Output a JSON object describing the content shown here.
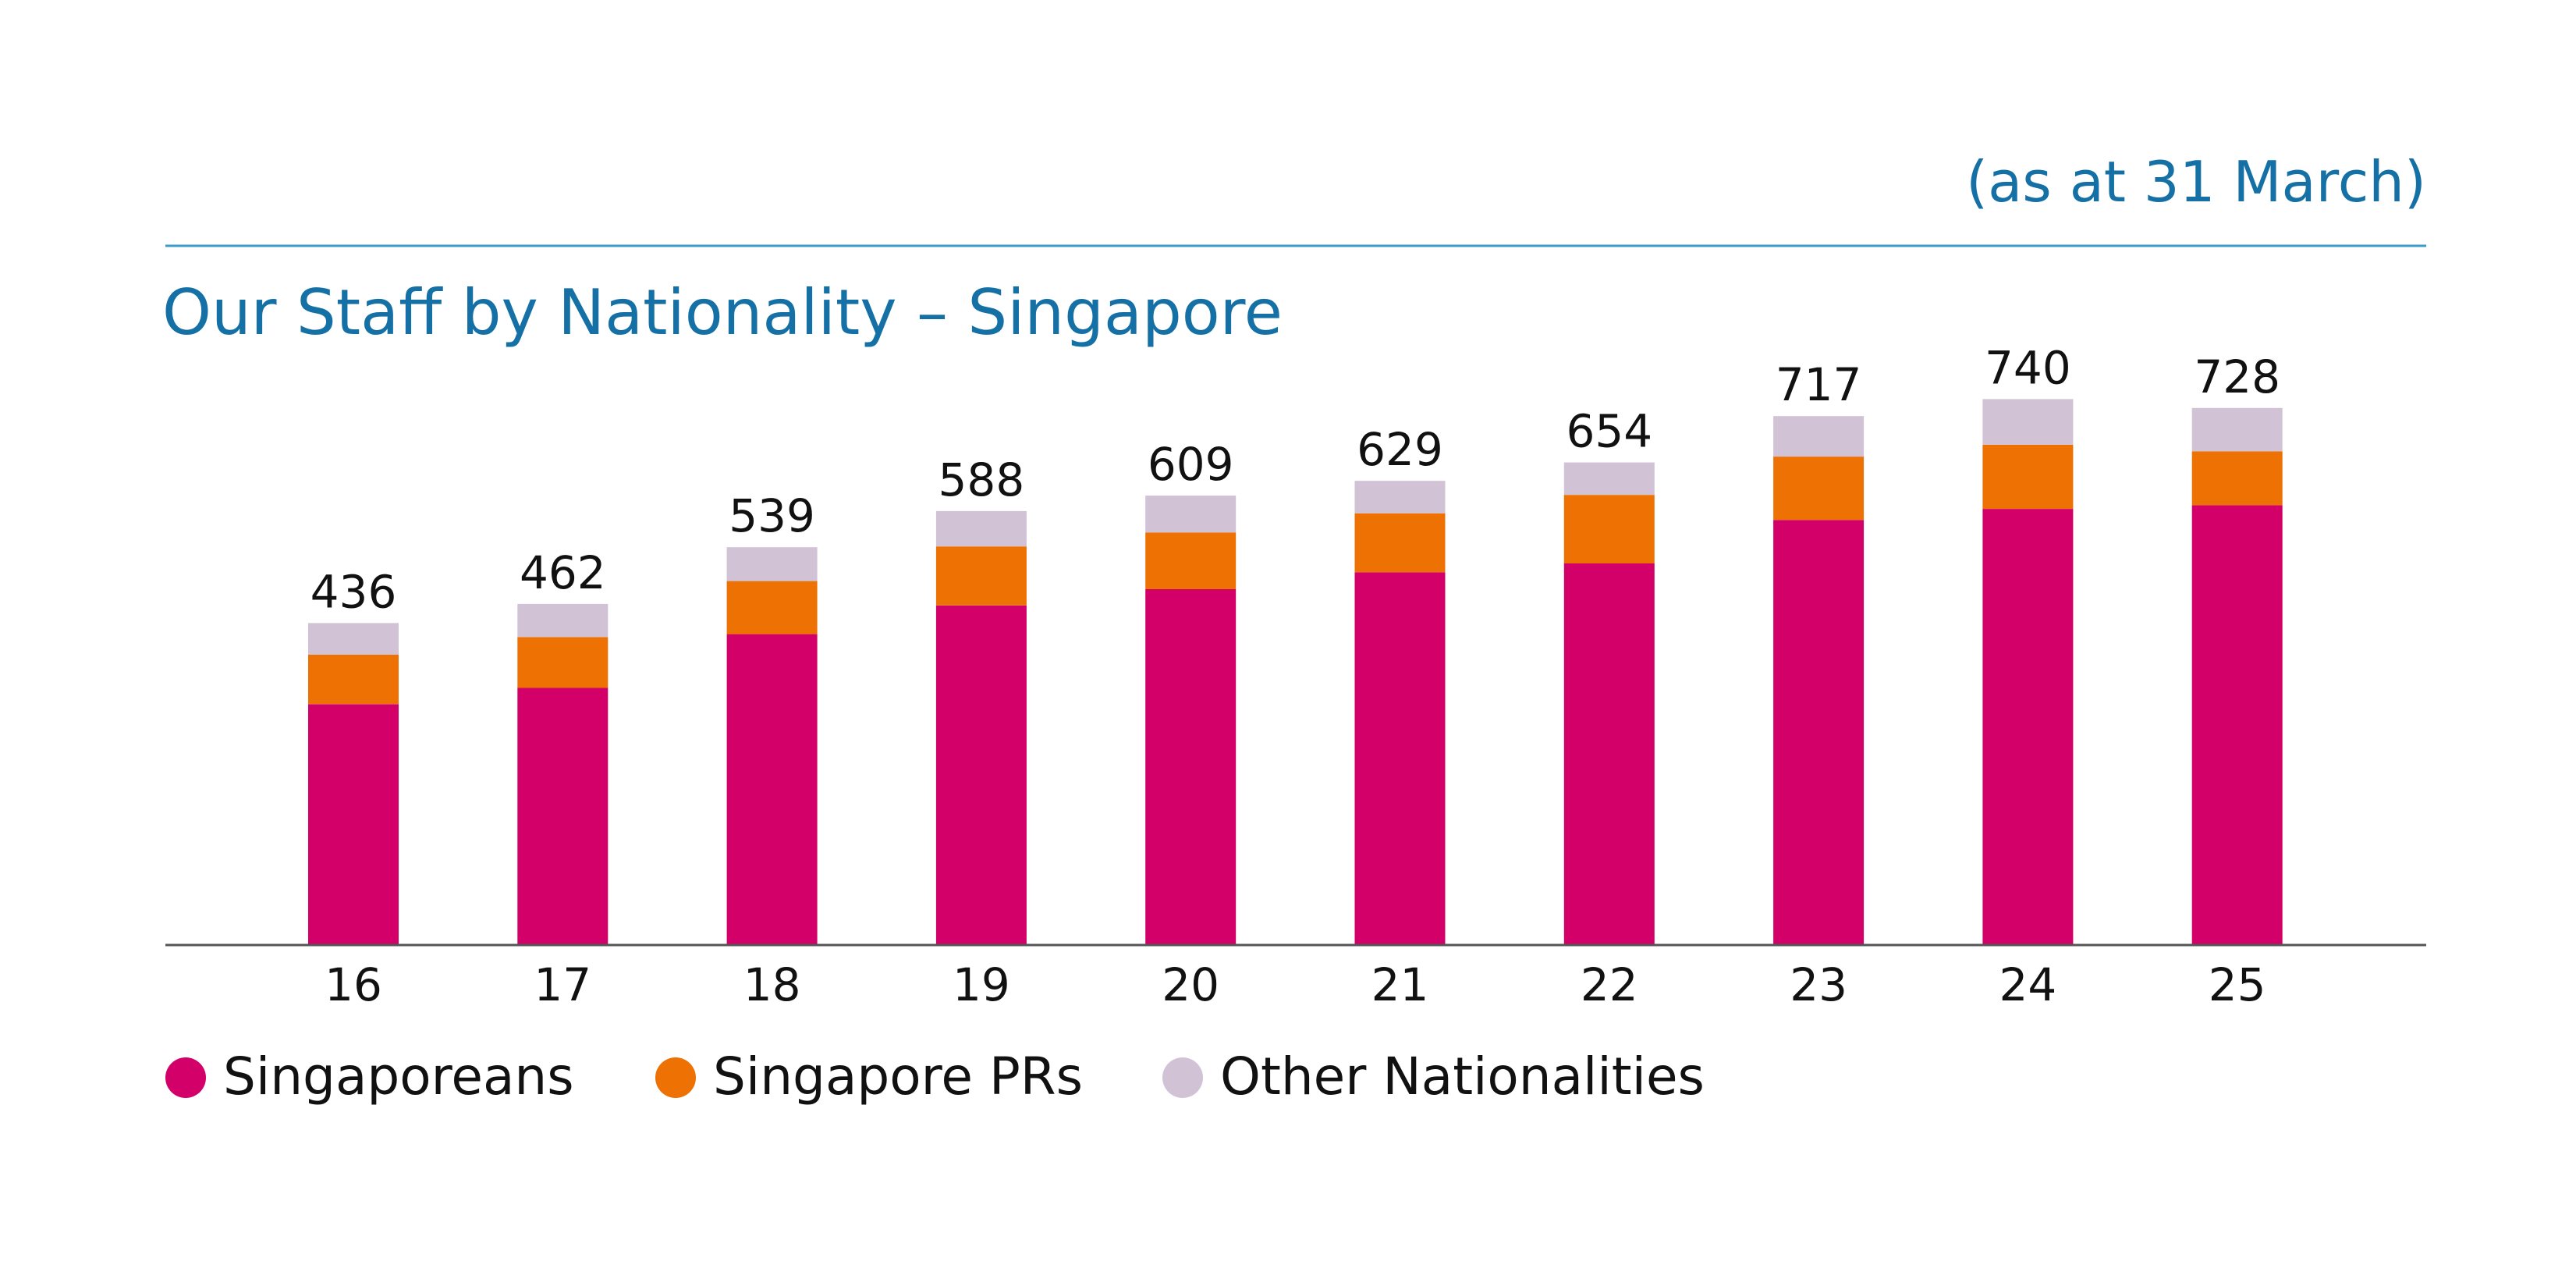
{
  "chart_data": {
    "type": "bar",
    "stacked": true,
    "note": "(as at 31 March)",
    "title": "Our Staff by Nationality – Singapore",
    "categories": [
      "16",
      "17",
      "18",
      "19",
      "20",
      "21",
      "22",
      "23",
      "24",
      "25"
    ],
    "totals": [
      "436",
      "462",
      "539",
      "588",
      "609",
      "629",
      "654",
      "717",
      "740",
      "728"
    ],
    "series": [
      {
        "name": "Singaporeans",
        "color": "#D4006A",
        "values": [
          326,
          348,
          421,
          460,
          482,
          505,
          517,
          576,
          591,
          596
        ]
      },
      {
        "name": "Singapore PRs",
        "color": "#EE7203",
        "values": [
          67,
          69,
          72,
          80,
          77,
          80,
          93,
          86,
          87,
          73
        ]
      },
      {
        "name": "Other Nationalities",
        "color": "#D1C2D6",
        "values": [
          43,
          45,
          46,
          48,
          50,
          44,
          44,
          55,
          62,
          59
        ]
      }
    ],
    "ylim": [
      0,
      740
    ],
    "grid": false,
    "legend_position": "bottom-left"
  },
  "colors": {
    "accent": "#1570A6",
    "rule": "#3B9ACB",
    "axis": "#555555",
    "label": "#111111"
  }
}
